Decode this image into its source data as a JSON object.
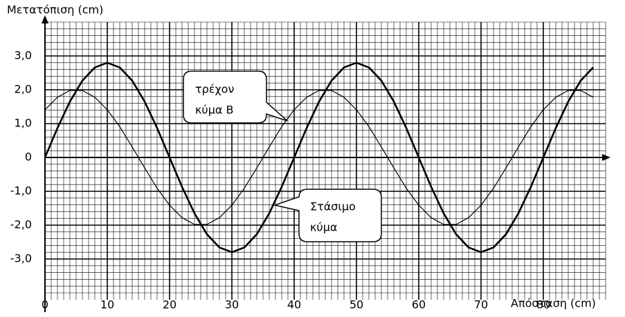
{
  "chart_data": {
    "type": "line",
    "title": "Μετατόπιση (cm)",
    "xlabel": "Απόσταση (cm)",
    "x": [
      0,
      2,
      4,
      6,
      8,
      10,
      12,
      14,
      16,
      18,
      20,
      22,
      24,
      26,
      28,
      30,
      32,
      34,
      36,
      38,
      40,
      42,
      44,
      46,
      48,
      50,
      52,
      54,
      56,
      58,
      60,
      62,
      64,
      66,
      68,
      70,
      72,
      74,
      76,
      78,
      80,
      82,
      84,
      86,
      88
    ],
    "series": [
      {
        "color": "#000000",
        "width": 2.6,
        "values": [
          0,
          0.87,
          1.65,
          2.27,
          2.66,
          2.8,
          2.66,
          2.27,
          1.65,
          0.87,
          0,
          -0.87,
          -1.65,
          -2.27,
          -2.66,
          -2.8,
          -2.66,
          -2.27,
          -1.65,
          -0.87,
          0,
          0.87,
          1.65,
          2.27,
          2.66,
          2.8,
          2.66,
          2.27,
          1.65,
          0.87,
          0,
          -0.87,
          -1.65,
          -2.27,
          -2.66,
          -2.8,
          -2.66,
          -2.27,
          -1.65,
          -0.87,
          0,
          0.87,
          1.65,
          2.27,
          2.66
        ]
      },
      {
        "color": "#000000",
        "width": 1.2,
        "values": [
          1.41,
          1.78,
          1.98,
          1.98,
          1.78,
          1.41,
          0.91,
          0.31,
          -0.31,
          -0.91,
          -1.41,
          -1.78,
          -1.98,
          -1.98,
          -1.78,
          -1.41,
          -0.91,
          -0.31,
          0.31,
          0.91,
          1.41,
          1.78,
          1.98,
          1.98,
          1.78,
          1.41,
          0.91,
          0.31,
          -0.31,
          -0.91,
          -1.41,
          -1.78,
          -1.98,
          -1.98,
          -1.78,
          -1.41,
          -0.91,
          -0.31,
          0.31,
          0.91,
          1.41,
          1.78,
          1.98,
          1.98,
          1.78
        ]
      }
    ],
    "xlim": [
      0,
      90
    ],
    "ylim": [
      -4,
      4
    ],
    "xticks": [
      0,
      10,
      20,
      30,
      40,
      50,
      60,
      70,
      80
    ],
    "yticks": [
      {
        "value": -3,
        "label": "-3,0"
      },
      {
        "value": -2,
        "label": "-2,0"
      },
      {
        "value": -1,
        "label": "-1,0"
      },
      0,
      {
        "value": 1,
        "label": "1,0"
      },
      {
        "value": 2,
        "label": "2,0"
      },
      {
        "value": 3,
        "label": "3,0"
      }
    ],
    "grid": true,
    "xminor": 1,
    "yminor": 0.2,
    "annotations": [
      {
        "lines": [
          "τρέχον",
          "κύμα Β"
        ]
      },
      {
        "lines": [
          "Στάσιμο",
          "κύμα"
        ]
      }
    ]
  }
}
